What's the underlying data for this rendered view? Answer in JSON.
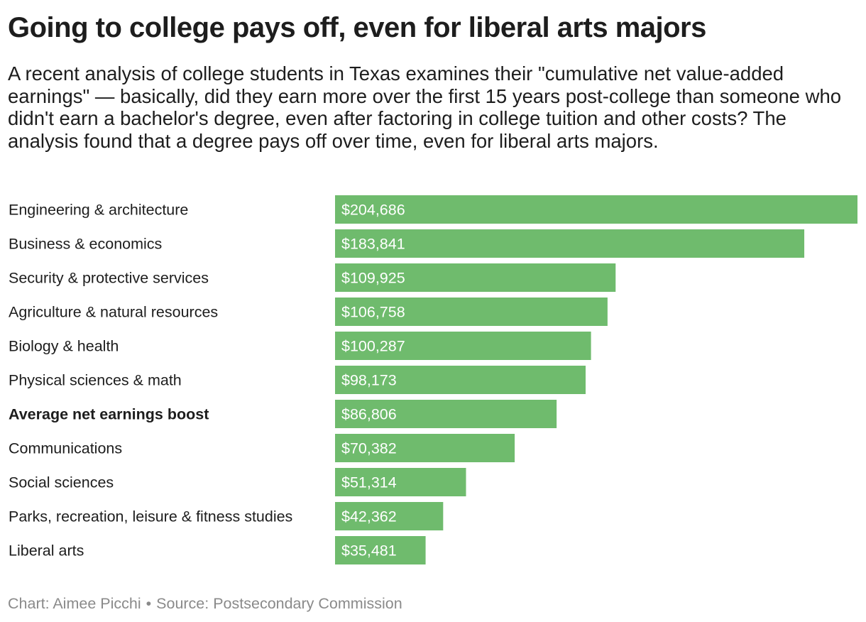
{
  "title": "Going to college pays off, even for liberal arts majors",
  "subtitle": "A recent analysis of college students in Texas examines their \"cumulative net value-added earnings\" — basically, did they earn more over the first 15 years post-college than someone who didn't earn a bachelor's degree, even after factoring in college tuition and other costs? The analysis found that a degree pays off over time, even for liberal arts majors.",
  "footer": {
    "credit": "Chart: Aimee Picchi",
    "separator": "•",
    "source": "Source: Postsecondary Commission"
  },
  "colors": {
    "bar": "#6fbb6d",
    "text": "#1d1d1d",
    "footer_text": "#8a8a8a",
    "value_label": "#ffffff"
  },
  "chart_data": {
    "type": "bar",
    "orientation": "horizontal",
    "title": "Going to college pays off, even for liberal arts majors",
    "xlabel": "",
    "ylabel": "",
    "grid": false,
    "legend": "none",
    "xlim": [
      0,
      204686
    ],
    "highlight_category": "Average net earnings boost",
    "categories": [
      "Engineering & architecture",
      "Business & economics",
      "Security & protective services",
      "Agriculture & natural resources",
      "Biology & health",
      "Physical sciences & math",
      "Average net earnings boost",
      "Communications",
      "Social sciences",
      "Parks, recreation, leisure & fitness studies",
      "Liberal arts"
    ],
    "values": [
      204686,
      183841,
      109925,
      106758,
      100287,
      98173,
      86806,
      70382,
      51314,
      42362,
      35481
    ],
    "value_labels": [
      "$204,686",
      "$183,841",
      "$109,925",
      "$106,758",
      "$100,287",
      "$98,173",
      "$86,806",
      "$70,382",
      "$51,314",
      "$42,362",
      "$35,481"
    ]
  }
}
